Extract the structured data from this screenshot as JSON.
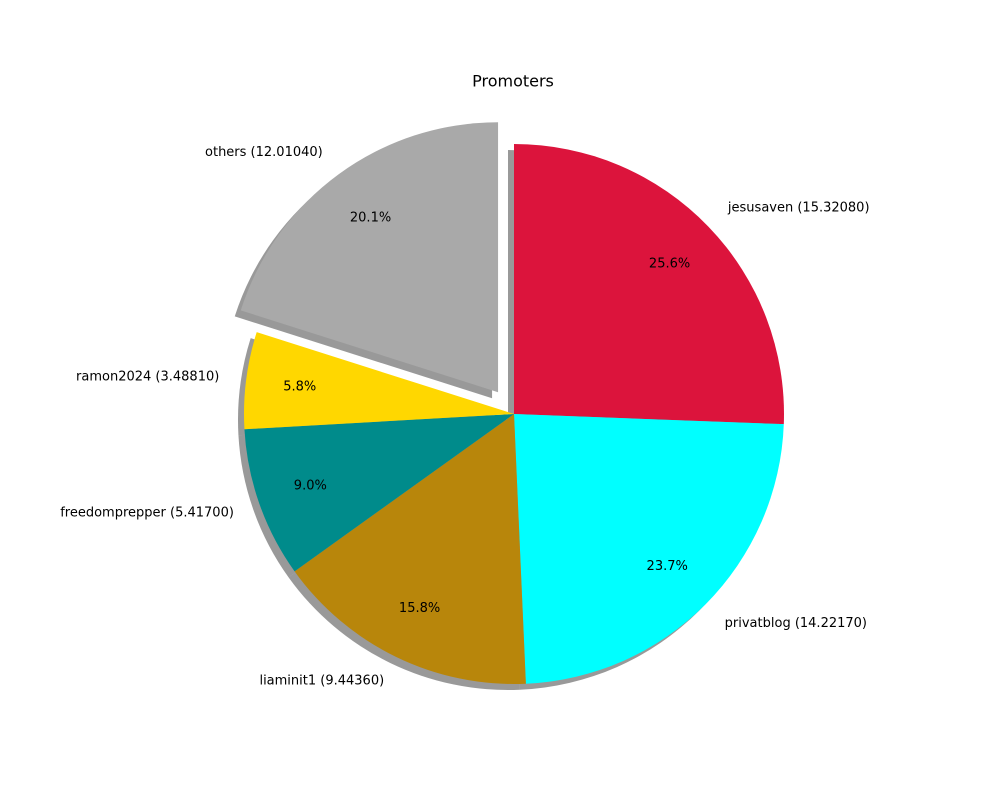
{
  "chart_data": {
    "type": "pie",
    "title": "Promoters",
    "categories": [
      "jesusaven (15.32080)",
      "privatblog (14.22170)",
      "liaminit1 (9.44360)",
      "freedomprepper (5.41700)",
      "ramon2024 (3.48810)",
      "others (12.01040)"
    ],
    "values": [
      25.6,
      23.7,
      15.8,
      9.0,
      5.8,
      20.1
    ],
    "value_labels": [
      "25.6%",
      "23.7%",
      "15.8%",
      "9.0%",
      "5.8%",
      "20.1%"
    ],
    "colors": [
      "#dc143c",
      "#00ffff",
      "#b8860b",
      "#008b8b",
      "#ffd700",
      "#a9a9a9"
    ],
    "explode": [
      0,
      0,
      0,
      0,
      0,
      0.1
    ],
    "shadow": true
  }
}
